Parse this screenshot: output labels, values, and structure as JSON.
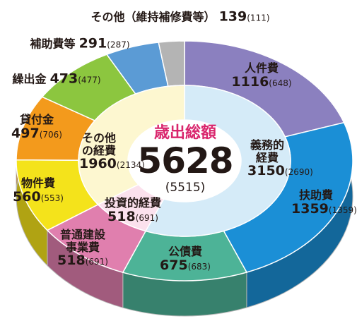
{
  "chart_data": {
    "type": "donut3d",
    "title": "歳出総額",
    "total": 5628,
    "total_prev_label": "(5515)",
    "outer": {
      "categories": [
        "人件費",
        "扶助費",
        "公債費",
        "普通建設事業費",
        "物件費",
        "貸付金",
        "繰出金",
        "補助費等",
        "その他（維持補修費等）"
      ],
      "values": [
        1116,
        1359,
        675,
        518,
        560,
        497,
        473,
        291,
        139
      ],
      "prev_labels": [
        "(648)",
        "(1359)",
        "(683)",
        "(691)",
        "(553)",
        "(706)",
        "(477)",
        "(287)",
        "(111)"
      ],
      "colors": [
        "#8b80bf",
        "#1b8fd6",
        "#4db397",
        "#e07fae",
        "#f4e31b",
        "#f39a1c",
        "#8cc63f",
        "#5b9bd5",
        "#b4b4b4"
      ]
    },
    "inner": {
      "categories": [
        "義務的経費",
        "投資的経費",
        "その他の経費"
      ],
      "values": [
        3150,
        518,
        1960
      ],
      "prev_labels": [
        "(2690)",
        "(691)",
        "(2134)"
      ],
      "colors": [
        "#d5ebf8",
        "#fbe1ed",
        "#fdf7d0"
      ]
    }
  }
}
